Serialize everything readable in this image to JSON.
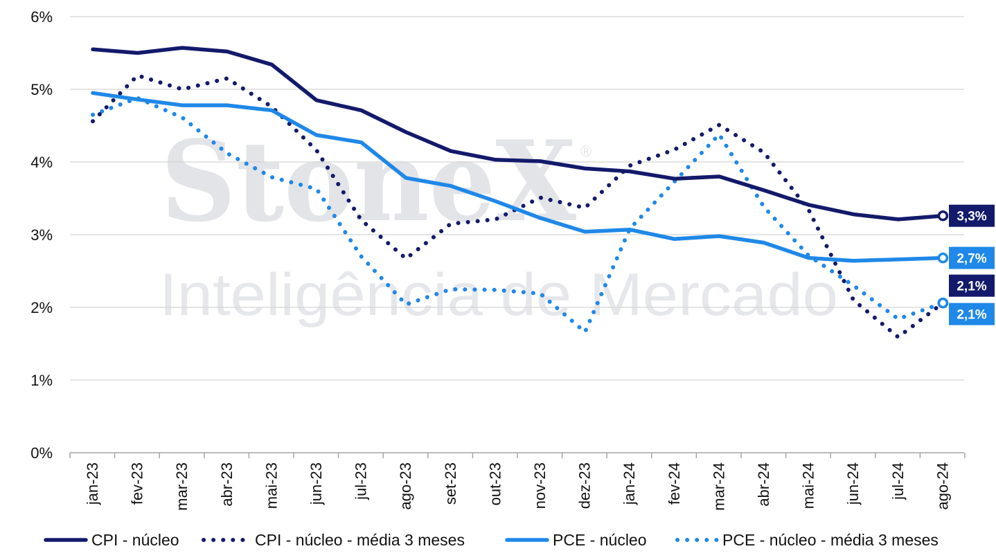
{
  "watermark": {
    "brand": "StoneX",
    "registered": "®",
    "tagline": "Inteligência de Mercado"
  },
  "chart_data": {
    "type": "line",
    "categories": [
      "jan-23",
      "fev-23",
      "mar-23",
      "abr-23",
      "mai-23",
      "jun-23",
      "jul-23",
      "ago-23",
      "set-23",
      "out-23",
      "nov-23",
      "dez-23",
      "jan-24",
      "fev-24",
      "mar-24",
      "abr-24",
      "mai-24",
      "jun-24",
      "jul-24",
      "ago-24"
    ],
    "ylim": [
      0,
      6
    ],
    "yticks": [
      0,
      1,
      2,
      3,
      4,
      5,
      6
    ],
    "ytick_labels": [
      "0%",
      "1%",
      "2%",
      "3%",
      "4%",
      "5%",
      "6%"
    ],
    "grid": true,
    "legend_position": "bottom",
    "series": [
      {
        "name": "CPI - núcleo",
        "style": "solid",
        "color": "#131a6b",
        "values": [
          5.55,
          5.5,
          5.57,
          5.52,
          5.34,
          4.85,
          4.71,
          4.41,
          4.15,
          4.03,
          4.01,
          3.91,
          3.87,
          3.77,
          3.8,
          3.61,
          3.41,
          3.28,
          3.21,
          3.26
        ],
        "end_label": "3,3%",
        "end_label_bg": "#131a6b"
      },
      {
        "name": "CPI - núcleo - média 3 meses",
        "style": "dotted",
        "color": "#131a6b",
        "values": [
          4.56,
          5.19,
          5.0,
          5.15,
          4.76,
          4.16,
          3.2,
          2.67,
          3.15,
          3.21,
          3.51,
          3.37,
          3.95,
          4.17,
          4.51,
          4.13,
          3.34,
          2.1,
          1.59,
          2.06
        ],
        "end_label": "2,1%",
        "end_label_bg": "#131a6b"
      },
      {
        "name": "PCE - núcleo",
        "style": "solid",
        "color": "#1f88e8",
        "values": [
          4.95,
          4.86,
          4.78,
          4.78,
          4.71,
          4.37,
          4.27,
          3.78,
          3.67,
          3.46,
          3.23,
          3.04,
          3.07,
          2.94,
          2.98,
          2.89,
          2.68,
          2.64,
          2.66,
          2.68
        ],
        "end_label": "2,7%",
        "end_label_bg": "#1f88e8"
      },
      {
        "name": "PCE - núcleo - média 3 meses",
        "style": "dotted",
        "color": "#1f88e8",
        "values": [
          4.65,
          4.88,
          4.61,
          4.12,
          3.79,
          3.63,
          2.7,
          2.04,
          2.25,
          2.24,
          2.19,
          1.66,
          3.08,
          3.73,
          4.38,
          3.38,
          2.71,
          2.3,
          1.84,
          2.06
        ],
        "end_label": "2,1%",
        "end_label_bg": "#1f88e8"
      }
    ]
  }
}
